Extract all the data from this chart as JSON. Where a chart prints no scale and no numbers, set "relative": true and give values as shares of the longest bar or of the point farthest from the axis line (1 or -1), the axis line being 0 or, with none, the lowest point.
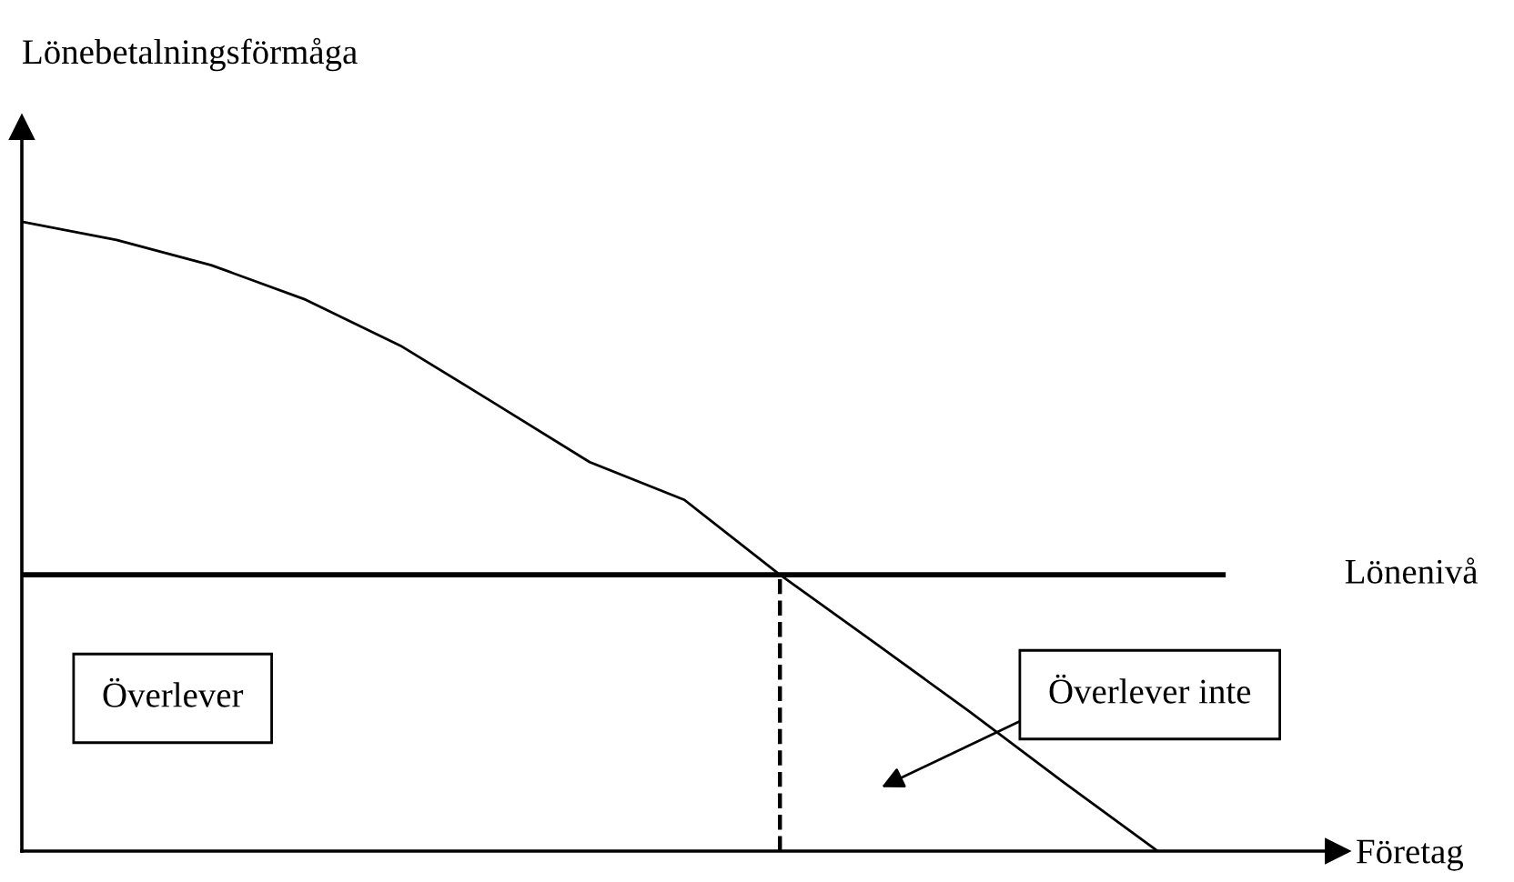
{
  "chart_data": {
    "type": "line",
    "relative": true,
    "xlabel": "Företag",
    "ylabel": "Lönebetalningsförmåga",
    "categories": [
      null,
      null,
      null,
      null,
      null,
      null,
      null,
      null,
      null,
      null,
      null,
      null,
      null
    ],
    "series": [
      {
        "color": "#000000",
        "values": [
          1.0,
          0.971,
          0.931,
          0.876,
          0.803,
          0.711,
          0.618,
          0.558,
          0.44,
          0.332,
          0.223,
          0.11,
          0.0
        ]
      }
    ],
    "ref_lines": [
      {
        "axis": "y",
        "value": 0.439,
        "label": "Lönenivå",
        "color": "#000000",
        "line_style": "solid"
      }
    ],
    "annotations": [
      "Överlever",
      "Överlever inte"
    ],
    "marker": "none",
    "line_style": "solid"
  }
}
